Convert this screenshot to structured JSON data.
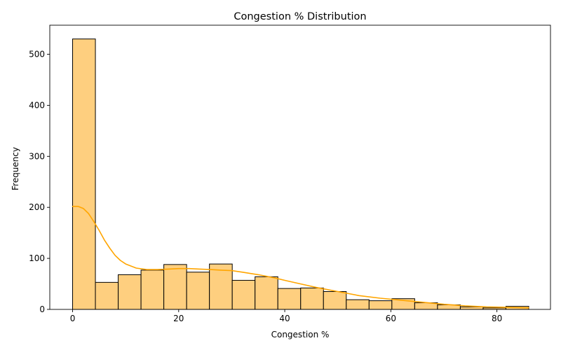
{
  "chart_data": {
    "type": "bar",
    "title": "Congestion % Distribution",
    "xlabel": "Congestion %",
    "ylabel": "Frequency",
    "xlim": [
      -4.3,
      90.1
    ],
    "ylim": [
      0,
      557
    ],
    "xticks": [
      0,
      20,
      40,
      60,
      80
    ],
    "yticks": [
      0,
      100,
      200,
      300,
      400,
      500
    ],
    "bin_width": 4.3,
    "bins": [
      {
        "start": 0.0,
        "end": 4.3,
        "count": 530
      },
      {
        "start": 4.3,
        "end": 8.6,
        "count": 53
      },
      {
        "start": 8.6,
        "end": 12.9,
        "count": 68
      },
      {
        "start": 12.9,
        "end": 17.2,
        "count": 77
      },
      {
        "start": 17.2,
        "end": 21.5,
        "count": 88
      },
      {
        "start": 21.5,
        "end": 25.8,
        "count": 73
      },
      {
        "start": 25.8,
        "end": 30.1,
        "count": 89
      },
      {
        "start": 30.1,
        "end": 34.4,
        "count": 57
      },
      {
        "start": 34.4,
        "end": 38.7,
        "count": 64
      },
      {
        "start": 38.7,
        "end": 43.0,
        "count": 41
      },
      {
        "start": 43.0,
        "end": 47.3,
        "count": 42
      },
      {
        "start": 47.3,
        "end": 51.6,
        "count": 35
      },
      {
        "start": 51.6,
        "end": 55.9,
        "count": 19
      },
      {
        "start": 55.9,
        "end": 60.2,
        "count": 17
      },
      {
        "start": 60.2,
        "end": 64.5,
        "count": 21
      },
      {
        "start": 64.5,
        "end": 68.8,
        "count": 13
      },
      {
        "start": 68.8,
        "end": 73.1,
        "count": 9
      },
      {
        "start": 73.1,
        "end": 77.4,
        "count": 5
      },
      {
        "start": 77.4,
        "end": 81.7,
        "count": 3
      },
      {
        "start": 81.7,
        "end": 86.0,
        "count": 6
      }
    ],
    "kde": {
      "x": [
        0,
        1,
        2,
        3,
        4,
        5,
        6,
        7,
        8,
        9,
        10,
        12,
        14,
        16,
        18,
        20,
        22,
        24,
        26,
        28,
        30,
        32,
        35,
        38,
        40,
        43,
        46,
        50,
        54,
        58,
        62,
        66,
        70,
        74,
        78,
        82,
        86
      ],
      "y": [
        202,
        202,
        198,
        188,
        172,
        155,
        136,
        120,
        106,
        96,
        89,
        81,
        78,
        78,
        79,
        80,
        80,
        79,
        78,
        77,
        76,
        73,
        68,
        62,
        57,
        50,
        43,
        35,
        27,
        22,
        18,
        14,
        10,
        7,
        5,
        4,
        3
      ]
    },
    "colors": {
      "bar_fill": "#fecf7f",
      "bar_edge": "#000000",
      "kde_line": "#ffa500"
    },
    "grid": false,
    "legend": "none"
  }
}
